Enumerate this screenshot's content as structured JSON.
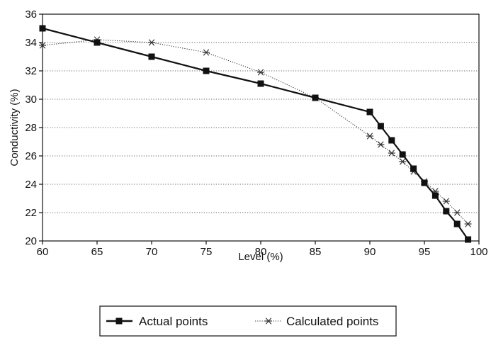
{
  "chart_data": {
    "type": "line",
    "xlabel": "Level (%)",
    "ylabel": "Conductivity (%)",
    "xlim": [
      60,
      100
    ],
    "ylim": [
      20,
      36
    ],
    "x_ticks": [
      60,
      65,
      70,
      75,
      80,
      85,
      90,
      95,
      100
    ],
    "y_ticks": [
      20,
      22,
      24,
      26,
      28,
      30,
      32,
      34,
      36
    ],
    "grid": "horizontal dotted",
    "legend_position": "bottom-center",
    "series": [
      {
        "name": "Actual points",
        "marker": "square",
        "line_style": "solid",
        "color": "#111111",
        "x": [
          60,
          65,
          70,
          75,
          80,
          85,
          90,
          91,
          92,
          93,
          94,
          95,
          96,
          97,
          98,
          99
        ],
        "y": [
          35.0,
          34.0,
          33.0,
          32.0,
          31.1,
          30.1,
          29.1,
          28.1,
          27.1,
          26.1,
          25.1,
          24.1,
          23.2,
          22.1,
          21.2,
          20.1
        ]
      },
      {
        "name": "Calculated points",
        "marker": "asterisk",
        "line_style": "dotted",
        "color": "#333333",
        "x": [
          60,
          65,
          70,
          75,
          80,
          85,
          90,
          91,
          92,
          93,
          94,
          95,
          96,
          97,
          98,
          99
        ],
        "y": [
          33.8,
          34.2,
          34.0,
          33.3,
          31.9,
          30.1,
          27.4,
          26.8,
          26.2,
          25.6,
          24.9,
          24.2,
          23.5,
          22.8,
          22.0,
          21.2
        ]
      }
    ]
  }
}
